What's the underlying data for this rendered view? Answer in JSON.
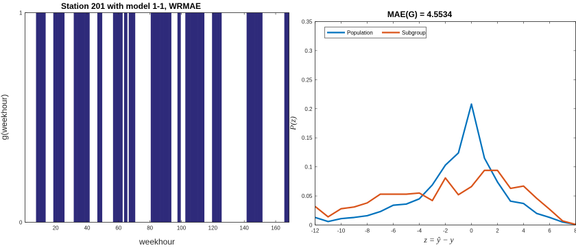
{
  "chart_data": [
    {
      "type": "bar",
      "title": "Station 201 with model 1-1, WRMAE",
      "xlabel": "weekhour",
      "ylabel": "g(weekhour)",
      "xlim": [
        1,
        168
      ],
      "ylim": [
        0,
        1
      ],
      "xticks": [
        20,
        40,
        60,
        80,
        100,
        120,
        140,
        160
      ],
      "yticks": [
        0,
        1
      ],
      "bar_color": "#2e2a7a",
      "selected_weekhours": [
        8,
        9,
        10,
        11,
        12,
        13,
        19,
        20,
        21,
        22,
        23,
        24,
        25,
        32,
        33,
        34,
        35,
        36,
        37,
        38,
        39,
        40,
        41,
        47,
        48,
        49,
        57,
        58,
        59,
        60,
        61,
        62,
        64,
        65,
        67,
        68,
        69,
        70,
        81,
        82,
        83,
        84,
        85,
        86,
        87,
        88,
        89,
        90,
        91,
        92,
        93,
        98,
        99,
        103,
        104,
        105,
        106,
        107,
        108,
        109,
        110,
        111,
        112,
        113,
        114,
        120,
        121,
        122,
        123,
        124,
        125,
        142,
        143,
        144,
        145,
        146,
        147,
        148,
        149,
        150,
        151,
        166,
        167,
        168
      ]
    },
    {
      "type": "line",
      "title": "MAE(G) = 4.5534",
      "xlabel": "z = ŷ − y",
      "ylabel": "P(z)",
      "xlim": [
        -12,
        8
      ],
      "ylim": [
        0,
        0.35
      ],
      "xticks": [
        -12,
        -10,
        -8,
        -6,
        -4,
        -2,
        0,
        2,
        4,
        6,
        8
      ],
      "yticks": [
        0,
        0.05,
        0.1,
        0.15,
        0.2,
        0.25,
        0.3,
        0.35
      ],
      "legend_location": "top-left",
      "x": [
        -12,
        -11,
        -10,
        -9,
        -8,
        -7,
        -6,
        -5,
        -4,
        -3,
        -2,
        -1,
        0,
        1,
        2,
        3,
        4,
        5,
        6,
        7,
        8
      ],
      "series": [
        {
          "name": "Population",
          "color": "#0072bd",
          "values": [
            0.013,
            0.006,
            0.011,
            0.013,
            0.016,
            0.023,
            0.034,
            0.036,
            0.045,
            0.069,
            0.103,
            0.124,
            0.208,
            0.115,
            0.074,
            0.041,
            0.037,
            0.02,
            0.013,
            0.005,
            0.001
          ]
        },
        {
          "name": "Subgroup",
          "color": "#d95319",
          "values": [
            0.032,
            0.014,
            0.028,
            0.031,
            0.038,
            0.053,
            0.053,
            0.053,
            0.055,
            0.042,
            0.081,
            0.052,
            0.066,
            0.094,
            0.094,
            0.063,
            0.067,
            0.046,
            0.027,
            0.007,
            0.001
          ]
        }
      ]
    }
  ]
}
